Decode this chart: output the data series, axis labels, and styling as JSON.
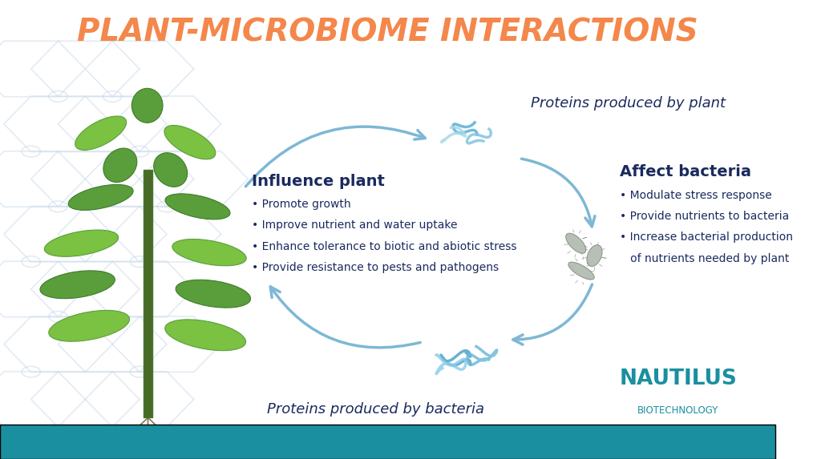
{
  "title": "PLANT-MICROBIOME INTERACTIONS",
  "title_color": "#F4874B",
  "title_fontsize": 28,
  "teal_bar_color": "#1a8fa0",
  "nautilus_color": "#1a8fa0",
  "dark_navy": "#1a2a5e",
  "arrow_color": "#7db8d4",
  "affect_bacteria_bullets": [
    "• Modulate stress response",
    "• Provide nutrients to bacteria",
    "• Increase bacterial production",
    "   of nutrients needed by plant"
  ],
  "influence_plant_bullets": [
    "• Promote growth",
    "• Improve nutrient and water uptake",
    "• Enhance tolerance to biotic and abiotic stress",
    "• Provide resistance to pests and pathogens"
  ],
  "label_fontsize": 13,
  "bullet_fontsize": 10,
  "hexagon_color": "#c8d8e8",
  "hexagon_alpha": 0.5,
  "leaf_green": "#5a9e3c",
  "leaf_dark": "#3d7a28",
  "leaf_light": "#7bc142",
  "stem_color": "#4a6b28",
  "root_color": "#8B7355",
  "protein_plant_colors": [
    "#5aaed4",
    "#82c5e0",
    "#a8d8ea"
  ],
  "protein_bacteria_colors": [
    "#4a9fc4",
    "#6ab8d8",
    "#88ccec"
  ],
  "bacteria_face": "#b0b8b0",
  "bacteria_edge": "#808880"
}
